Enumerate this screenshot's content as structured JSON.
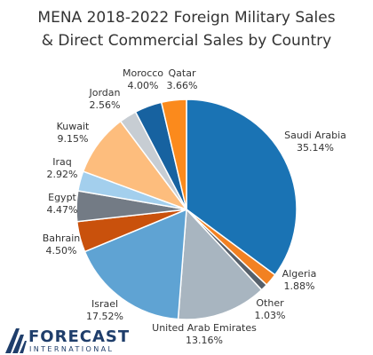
{
  "chart_data": {
    "type": "pie",
    "title_line1": "MENA 2018-2022 Foreign Military Sales",
    "title_line2": "& Direct Commercial Sales by Country",
    "slices": [
      {
        "label": "Saudi Arabia",
        "value": 35.14,
        "value_text": "35.14%",
        "color": "#1a73b4"
      },
      {
        "label": "Algeria",
        "value": 1.88,
        "value_text": "1.88%",
        "color": "#f28122"
      },
      {
        "label": "Other",
        "value": 1.03,
        "value_text": "1.03%",
        "color": "#56606b"
      },
      {
        "label": "United Arab Emirates",
        "value": 13.16,
        "value_text": "13.16%",
        "color": "#a8b5c0"
      },
      {
        "label": "Israel",
        "value": 17.52,
        "value_text": "17.52%",
        "color": "#5fa3d3"
      },
      {
        "label": "Bahrain",
        "value": 4.5,
        "value_text": "4.50%",
        "color": "#c9510c"
      },
      {
        "label": "Egypt",
        "value": 4.47,
        "value_text": "4.47%",
        "color": "#737b85"
      },
      {
        "label": "Iraq",
        "value": 2.92,
        "value_text": "2.92%",
        "color": "#a3cfed"
      },
      {
        "label": "Kuwait",
        "value": 9.15,
        "value_text": "9.15%",
        "color": "#fdbd7d"
      },
      {
        "label": "Jordan",
        "value": 2.56,
        "value_text": "2.56%",
        "color": "#c7cdd3"
      },
      {
        "label": "Morocco",
        "value": 4.0,
        "value_text": "4.00%",
        "color": "#1762a0"
      },
      {
        "label": "Qatar",
        "value": 3.66,
        "value_text": "3.66%",
        "color": "#fb8a1c"
      }
    ],
    "start_angle_deg": 0,
    "direction": "clockwise"
  },
  "branding": {
    "logo_word": "FORECAST",
    "logo_sub": "INTERNATIONAL",
    "logo_color": "#1f3e6b"
  }
}
